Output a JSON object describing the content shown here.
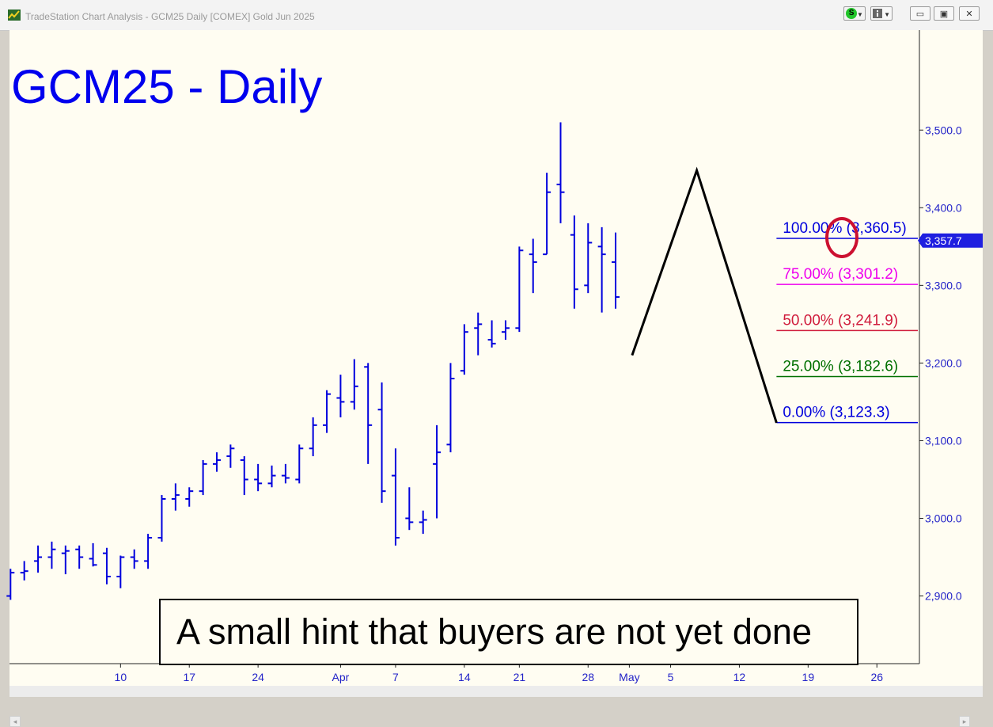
{
  "window": {
    "title": "TradeStation Chart Analysis - GCM25 Daily [COMEX] Gold Jun 2025",
    "s_label": "S",
    "min_glyph": "▭",
    "max_glyph": "▣",
    "close_glyph": "✕",
    "scroll_left_glyph": "◂",
    "scroll_right_glyph": "▸"
  },
  "chart_title": "GCM25 - Daily",
  "annotation": "A small hint that buyers are not yet done",
  "colors": {
    "background": "#fffdf2",
    "bars": "#0000dd",
    "axis_text": "#2323c8",
    "fib_100": "#0000dd",
    "fib_75": "#ee00ee",
    "fib_50": "#d01c3c",
    "fib_25": "#007000",
    "fib_0": "#0000dd",
    "circle": "#cc1030",
    "price_tag": "#1f1fe0"
  },
  "chart_data": {
    "type": "ohlc",
    "title": "GCM25 - Daily",
    "ylim": [
      2820,
      3620
    ],
    "y_ticks": [
      2900,
      3000,
      3100,
      3200,
      3300,
      3400,
      3500
    ],
    "y_tick_labels": [
      "2,900.0",
      "3,000.0",
      "3,100.0",
      "3,200.0",
      "3,300.0",
      "3,400.0",
      "3,500.0"
    ],
    "x_tick_labels": [
      {
        "label": "10",
        "bar": 8
      },
      {
        "label": "17",
        "bar": 13
      },
      {
        "label": "24",
        "bar": 18
      },
      {
        "label": "Apr",
        "bar": 24
      },
      {
        "label": "7",
        "bar": 28
      },
      {
        "label": "14",
        "bar": 33
      },
      {
        "label": "21",
        "bar": 37
      },
      {
        "label": "28",
        "bar": 42
      },
      {
        "label": "May",
        "bar": 45
      },
      {
        "label": "5",
        "bar": 48
      },
      {
        "label": "12",
        "bar": 53
      },
      {
        "label": "19",
        "bar": 58
      },
      {
        "label": "26",
        "bar": 63
      }
    ],
    "last_price": 3357.7,
    "last_price_label": "3,357.7",
    "bars": [
      {
        "o": 2900,
        "h": 2935,
        "l": 2895,
        "c": 2930
      },
      {
        "o": 2930,
        "h": 2945,
        "l": 2920,
        "c": 2932
      },
      {
        "o": 2945,
        "h": 2965,
        "l": 2930,
        "c": 2950
      },
      {
        "o": 2950,
        "h": 2970,
        "l": 2935,
        "c": 2960
      },
      {
        "o": 2955,
        "h": 2965,
        "l": 2928,
        "c": 2958
      },
      {
        "o": 2960,
        "h": 2965,
        "l": 2935,
        "c": 2950
      },
      {
        "o": 2948,
        "h": 2968,
        "l": 2938,
        "c": 2940
      },
      {
        "o": 2955,
        "h": 2962,
        "l": 2915,
        "c": 2925
      },
      {
        "o": 2925,
        "h": 2952,
        "l": 2910,
        "c": 2950
      },
      {
        "o": 2950,
        "h": 2960,
        "l": 2935,
        "c": 2945
      },
      {
        "o": 2945,
        "h": 2980,
        "l": 2935,
        "c": 2975
      },
      {
        "o": 2975,
        "h": 3030,
        "l": 2970,
        "c": 3025
      },
      {
        "o": 3025,
        "h": 3045,
        "l": 3010,
        "c": 3030
      },
      {
        "o": 3025,
        "h": 3040,
        "l": 3015,
        "c": 3035
      },
      {
        "o": 3035,
        "h": 3075,
        "l": 3030,
        "c": 3070
      },
      {
        "o": 3070,
        "h": 3085,
        "l": 3060,
        "c": 3075
      },
      {
        "o": 3080,
        "h": 3095,
        "l": 3065,
        "c": 3090
      },
      {
        "o": 3075,
        "h": 3080,
        "l": 3030,
        "c": 3050
      },
      {
        "o": 3050,
        "h": 3070,
        "l": 3035,
        "c": 3045
      },
      {
        "o": 3045,
        "h": 3068,
        "l": 3040,
        "c": 3055
      },
      {
        "o": 3055,
        "h": 3070,
        "l": 3045,
        "c": 3052
      },
      {
        "o": 3050,
        "h": 3095,
        "l": 3045,
        "c": 3090
      },
      {
        "o": 3090,
        "h": 3130,
        "l": 3080,
        "c": 3120
      },
      {
        "o": 3120,
        "h": 3165,
        "l": 3110,
        "c": 3160
      },
      {
        "o": 3155,
        "h": 3185,
        "l": 3130,
        "c": 3150
      },
      {
        "o": 3150,
        "h": 3205,
        "l": 3140,
        "c": 3170
      },
      {
        "o": 3195,
        "h": 3200,
        "l": 3070,
        "c": 3120
      },
      {
        "o": 3140,
        "h": 3175,
        "l": 3020,
        "c": 3035
      },
      {
        "o": 3055,
        "h": 3090,
        "l": 2965,
        "c": 2975
      },
      {
        "o": 3000,
        "h": 3040,
        "l": 2985,
        "c": 2995
      },
      {
        "o": 2995,
        "h": 3010,
        "l": 2980,
        "c": 2998
      },
      {
        "o": 3070,
        "h": 3120,
        "l": 3000,
        "c": 3085
      },
      {
        "o": 3095,
        "h": 3200,
        "l": 3085,
        "c": 3180
      },
      {
        "o": 3190,
        "h": 3250,
        "l": 3185,
        "c": 3240
      },
      {
        "o": 3245,
        "h": 3265,
        "l": 3210,
        "c": 3250
      },
      {
        "o": 3230,
        "h": 3255,
        "l": 3220,
        "c": 3225
      },
      {
        "o": 3240,
        "h": 3255,
        "l": 3230,
        "c": 3245
      },
      {
        "o": 3245,
        "h": 3350,
        "l": 3240,
        "c": 3345
      },
      {
        "o": 3340,
        "h": 3360,
        "l": 3290,
        "c": 3330
      },
      {
        "o": 3340,
        "h": 3445,
        "l": 3340,
        "c": 3420
      },
      {
        "o": 3430,
        "h": 3510,
        "l": 3380,
        "c": 3420
      },
      {
        "o": 3365,
        "h": 3390,
        "l": 3270,
        "c": 3295
      },
      {
        "o": 3300,
        "h": 3380,
        "l": 3290,
        "c": 3355
      },
      {
        "o": 3350,
        "h": 3375,
        "l": 3265,
        "c": 3340
      },
      {
        "o": 3330,
        "h": 3368,
        "l": 3270,
        "c": 3285
      }
    ]
  },
  "fibonacci": {
    "levels": [
      {
        "pct": "100.00%",
        "value": 3360.5,
        "label": "100.00% (3,360.5)",
        "color": "#0000dd"
      },
      {
        "pct": "75.00%",
        "value": 3301.2,
        "label": "75.00% (3,301.2)",
        "color": "#ee00ee"
      },
      {
        "pct": "50.00%",
        "value": 3241.9,
        "label": "50.00% (3,241.9)",
        "color": "#d01c3c"
      },
      {
        "pct": "25.00%",
        "value": 3182.6,
        "label": "25.00% (3,182.6)",
        "color": "#007000"
      },
      {
        "pct": "0.00%",
        "value": 3123.3,
        "label": "0.00% (3,123.3)",
        "color": "#0000dd"
      }
    ]
  },
  "swing_line": [
    {
      "bar": 45.2,
      "price": 3210
    },
    {
      "bar": 49.9,
      "price": 3448
    },
    {
      "bar": 55.7,
      "price": 3123
    }
  ]
}
